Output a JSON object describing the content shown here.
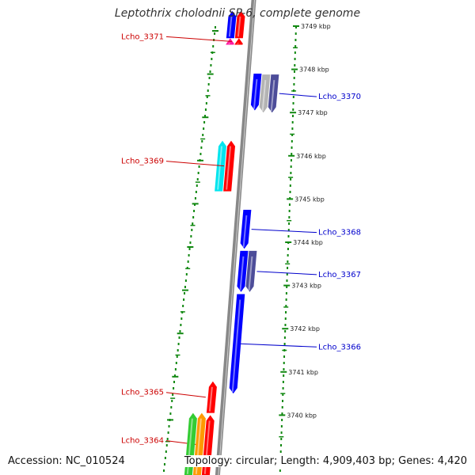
{
  "title": "Leptothrix cholodnii SP-6, complete genome",
  "footer": {
    "accession": "Accession: NC_010524",
    "summary": "Topology: circular; Length: 4,909,403 bp; Genes: 4,420"
  },
  "colors": {
    "forward_label": "#cc0000",
    "reverse_label": "#0000cc",
    "backbone": "#888888",
    "dotted_ring": "#118811",
    "red": "#ff0000",
    "blue": "#0000ff",
    "magenta": "#ff1aa0",
    "cyan": "#00e5ee",
    "slate": "#4d4d99",
    "silver": "#b3b3b3",
    "green": "#33cc33",
    "orange": "#ff9900"
  },
  "ticks": [
    {
      "kbp": 3749,
      "label": "3749 kbp"
    },
    {
      "kbp": 3748,
      "label": "3748 kbp"
    },
    {
      "kbp": 3747,
      "label": "3747 kbp"
    },
    {
      "kbp": 3746,
      "label": "3746 kbp"
    },
    {
      "kbp": 3745,
      "label": "3745 kbp"
    },
    {
      "kbp": 3744,
      "label": "3744 kbp"
    },
    {
      "kbp": 3743,
      "label": "3743 kbp"
    },
    {
      "kbp": 3742,
      "label": "3742 kbp"
    },
    {
      "kbp": 3741,
      "label": "3741 kbp"
    },
    {
      "kbp": 3740,
      "label": "3740 kbp"
    }
  ],
  "genes": [
    {
      "label": "",
      "strand": "+",
      "lane": 1,
      "start_kbp": 3749.35,
      "end_kbp": 3748.72,
      "color": "red"
    },
    {
      "label": "",
      "strand": "+",
      "lane": 2,
      "start_kbp": 3749.35,
      "end_kbp": 3748.72,
      "color": "blue"
    },
    {
      "label": "",
      "strand": "+",
      "lane": 2,
      "start_kbp": 3748.72,
      "end_kbp": 3748.57,
      "color": "magenta"
    },
    {
      "label": "Lcho_3371",
      "strand": "+",
      "lane": 1,
      "start_kbp": 3748.72,
      "end_kbp": 3748.57,
      "color": "red"
    },
    {
      "label": "",
      "strand": "-",
      "lane": 1,
      "start_kbp": 3747.9,
      "end_kbp": 3747.05,
      "color": "blue"
    },
    {
      "label": "",
      "strand": "-",
      "lane": 2,
      "start_kbp": 3747.88,
      "end_kbp": 3747.0,
      "color": "silver"
    },
    {
      "label": "Lcho_3370",
      "strand": "-",
      "lane": 3,
      "start_kbp": 3747.88,
      "end_kbp": 3747.0,
      "color": "slate"
    },
    {
      "label": "",
      "strand": "+",
      "lane": 2,
      "start_kbp": 3746.35,
      "end_kbp": 3745.18,
      "color": "cyan"
    },
    {
      "label": "Lcho_3369",
      "strand": "+",
      "lane": 1,
      "start_kbp": 3746.35,
      "end_kbp": 3745.18,
      "color": "red"
    },
    {
      "label": "Lcho_3368",
      "strand": "-",
      "lane": 1,
      "start_kbp": 3744.75,
      "end_kbp": 3743.85,
      "color": "blue"
    },
    {
      "label": "",
      "strand": "-",
      "lane": 1,
      "start_kbp": 3743.8,
      "end_kbp": 3742.85,
      "color": "blue"
    },
    {
      "label": "Lcho_3367",
      "strand": "-",
      "lane": 2,
      "start_kbp": 3743.8,
      "end_kbp": 3742.85,
      "color": "slate"
    },
    {
      "label": "Lcho_3366",
      "strand": "-",
      "lane": 1,
      "start_kbp": 3742.8,
      "end_kbp": 3740.5,
      "color": "blue"
    },
    {
      "label": "Lcho_3365",
      "strand": "+",
      "lane": 1,
      "start_kbp": 3740.78,
      "end_kbp": 3740.05,
      "color": "red"
    },
    {
      "label": "Lcho_3364",
      "strand": "+",
      "lane": 1,
      "start_kbp": 3740.0,
      "end_kbp": 3738.6,
      "color": "red"
    },
    {
      "label": "",
      "strand": "+",
      "lane": 2,
      "start_kbp": 3740.05,
      "end_kbp": 3738.6,
      "color": "orange"
    },
    {
      "label": "",
      "strand": "+",
      "lane": 3,
      "start_kbp": 3740.05,
      "end_kbp": 3738.6,
      "color": "green"
    }
  ]
}
